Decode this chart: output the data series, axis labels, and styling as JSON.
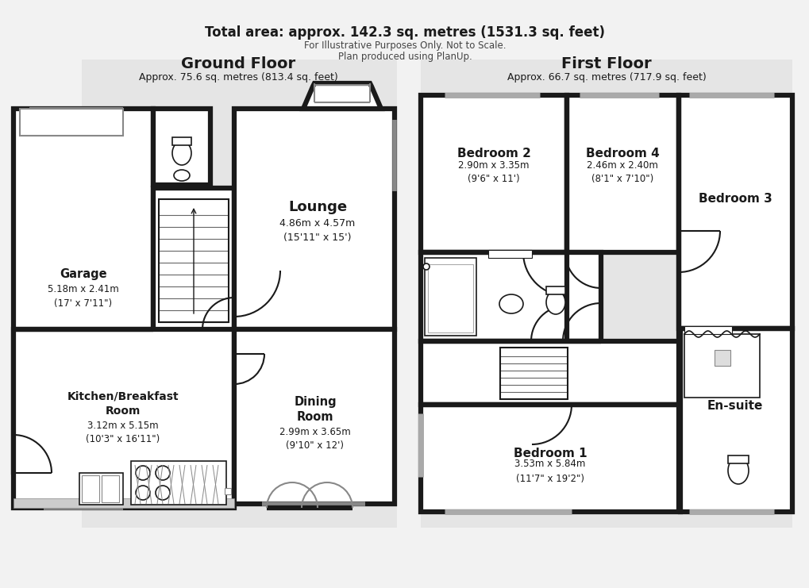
{
  "bg_color": "#f2f2f2",
  "wall_color": "#1a1a1a",
  "room_fill": "#ffffff",
  "gray_fill": "#e0e0e0",
  "lw_thick": 4.5,
  "lw_thin": 1.5,
  "lw_fixture": 1.2,
  "ground_floor_title": "Ground Floor",
  "ground_floor_subtitle": "Approx. 75.6 sq. metres (813.4 sq. feet)",
  "first_floor_title": "First Floor",
  "first_floor_subtitle": "Approx. 66.7 sq. metres (717.9 sq. feet)",
  "total_area": "Total area: approx. 142.3 sq. metres (1531.3 sq. feet)",
  "disclaimer1": "For Illustrative Purposes Only. Not to Scale.",
  "disclaimer2": "Plan produced using PlanUp.",
  "garage_label": "Garage",
  "garage_dims": "5.18m x 2.41m\n(17' x 7'11\")",
  "lounge_label": "Lounge",
  "lounge_dims": "4.86m x 4.57m\n(15'11\" x 15')",
  "kitchen_label": "Kitchen/Breakfast\nRoom",
  "kitchen_dims": "3.12m x 5.15m\n(10'3\" x 16'11\")",
  "dining_label": "Dining\nRoom",
  "dining_dims": "2.99m x 3.65m\n(9'10\" x 12')",
  "bed1_label": "Bedroom 1",
  "bed1_dims": "3.53m x 5.84m\n(11'7\" x 19'2\")",
  "bed2_label": "Bedroom 2",
  "bed2_dims": "2.90m x 3.35m\n(9'6\" x 11')",
  "bed3_label": "Bedroom 3",
  "bed4_label": "Bedroom 4",
  "bed4_dims": "2.46m x 2.40m\n(8'1\" x 7'10\")",
  "ensuite_label": "En-suite"
}
